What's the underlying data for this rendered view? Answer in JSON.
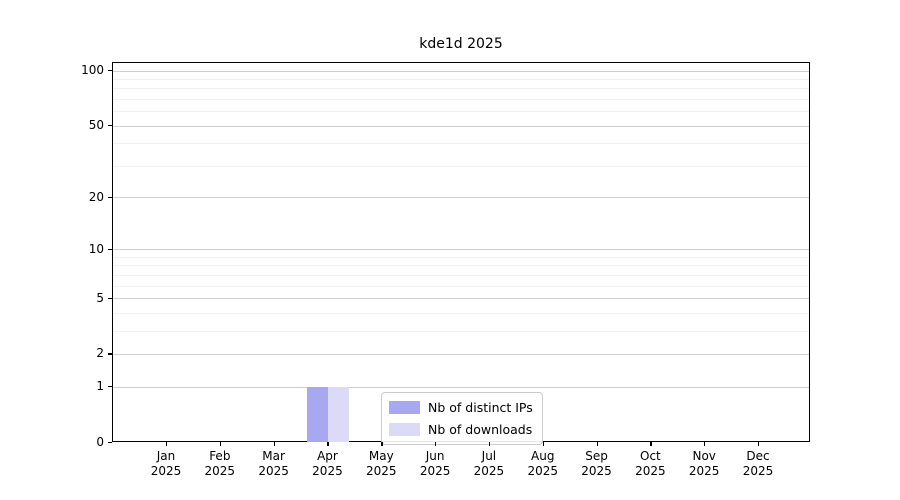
{
  "chart_data": {
    "type": "bar",
    "title": "kde1d 2025",
    "x_month_labels": [
      "Jan",
      "Feb",
      "Mar",
      "Apr",
      "May",
      "Jun",
      "Jul",
      "Aug",
      "Sep",
      "Oct",
      "Nov",
      "Dec"
    ],
    "x_year_label": "2025",
    "series": [
      {
        "name": "Nb of distinct IPs",
        "color": "#a8a8f1",
        "values": [
          0,
          0,
          0,
          1,
          0,
          0,
          0,
          0,
          0,
          0,
          0,
          0
        ]
      },
      {
        "name": "Nb of downloads",
        "color": "#dbdbf8",
        "values": [
          0,
          0,
          0,
          1,
          0,
          0,
          0,
          0,
          0,
          0,
          0,
          0
        ]
      }
    ],
    "y_scale": "log1p",
    "ylim": [
      0,
      100
    ],
    "y_major_ticks": [
      0,
      1,
      2,
      5,
      10,
      20,
      50,
      100
    ],
    "y_minor_gridlines": [
      3,
      4,
      6,
      7,
      8,
      9,
      30,
      40,
      60,
      70,
      80,
      90
    ],
    "grid": true,
    "legend_position": "lower center",
    "style": {
      "major_grid_color": "#cfcfcf",
      "minor_grid_color": "#f0f0f0",
      "frame_color": "#000000",
      "background_color": "#ffffff"
    }
  }
}
